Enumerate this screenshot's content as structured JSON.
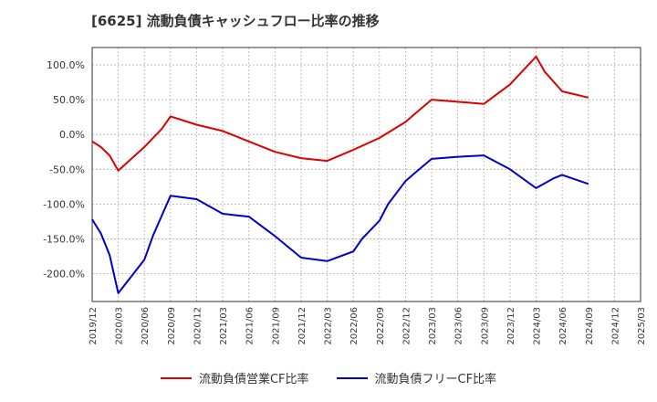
{
  "chart_data": {
    "type": "line",
    "title": "[6625]  流動負債キャッシュフロー比率の推移",
    "xlabel": "",
    "ylabel": "",
    "ylim": [
      -240,
      125
    ],
    "yticks": [
      100,
      50,
      0,
      -50,
      -100,
      -150,
      -200
    ],
    "ytick_labels": [
      "100.0%",
      "50.0%",
      "0.0%",
      "-50.0%",
      "-100.0%",
      "-150.0%",
      "-200.0%"
    ],
    "xlim": [
      "2019-12",
      "2025-03"
    ],
    "xtick_labels": [
      "2019/12",
      "2020/03",
      "2020/06",
      "2020/09",
      "2020/12",
      "2021/03",
      "2021/06",
      "2021/09",
      "2021/12",
      "2022/03",
      "2022/06",
      "2022/09",
      "2022/12",
      "2023/03",
      "2023/06",
      "2023/09",
      "2023/12",
      "2024/03",
      "2024/06",
      "2024/09",
      "2024/12",
      "2025/03"
    ],
    "grid": true,
    "legend_position": "bottom",
    "series": [
      {
        "name": "流動負債営業CF比率",
        "color": "#dd0000",
        "points": [
          [
            "2019-12",
            -10
          ],
          [
            "2020-01",
            -18
          ],
          [
            "2020-02",
            -30
          ],
          [
            "2020-03",
            -52
          ],
          [
            "2020-06",
            -18
          ],
          [
            "2020-08",
            8
          ],
          [
            "2020-09",
            26
          ],
          [
            "2020-12",
            14
          ],
          [
            "2021-03",
            5
          ],
          [
            "2021-06",
            -10
          ],
          [
            "2021-09",
            -25
          ],
          [
            "2021-12",
            -34
          ],
          [
            "2022-03",
            -38
          ],
          [
            "2022-06",
            -22
          ],
          [
            "2022-09",
            -5
          ],
          [
            "2022-12",
            18
          ],
          [
            "2023-01",
            29
          ],
          [
            "2023-03",
            50
          ],
          [
            "2023-06",
            47
          ],
          [
            "2023-09",
            44
          ],
          [
            "2023-12",
            72
          ],
          [
            "2024-03",
            112
          ],
          [
            "2024-04",
            90
          ],
          [
            "2024-06",
            62
          ],
          [
            "2024-09",
            53
          ]
        ]
      },
      {
        "name": "流動負債フリーCF比率",
        "color": "#0000cc",
        "points": [
          [
            "2019-12",
            -122
          ],
          [
            "2020-01",
            -142
          ],
          [
            "2020-02",
            -173
          ],
          [
            "2020-03",
            -228
          ],
          [
            "2020-06",
            -180
          ],
          [
            "2020-07",
            -145
          ],
          [
            "2020-09",
            -88
          ],
          [
            "2020-12",
            -93
          ],
          [
            "2021-03",
            -114
          ],
          [
            "2021-06",
            -118
          ],
          [
            "2021-09",
            -146
          ],
          [
            "2021-12",
            -177
          ],
          [
            "2022-03",
            -182
          ],
          [
            "2022-06",
            -168
          ],
          [
            "2022-07",
            -150
          ],
          [
            "2022-09",
            -124
          ],
          [
            "2022-10",
            -100
          ],
          [
            "2022-12",
            -67
          ],
          [
            "2023-01",
            -56
          ],
          [
            "2023-03",
            -35
          ],
          [
            "2023-06",
            -32
          ],
          [
            "2023-09",
            -30
          ],
          [
            "2023-12",
            -50
          ],
          [
            "2024-03",
            -77
          ],
          [
            "2024-05",
            -63
          ],
          [
            "2024-06",
            -58
          ],
          [
            "2024-09",
            -71
          ]
        ]
      }
    ]
  }
}
